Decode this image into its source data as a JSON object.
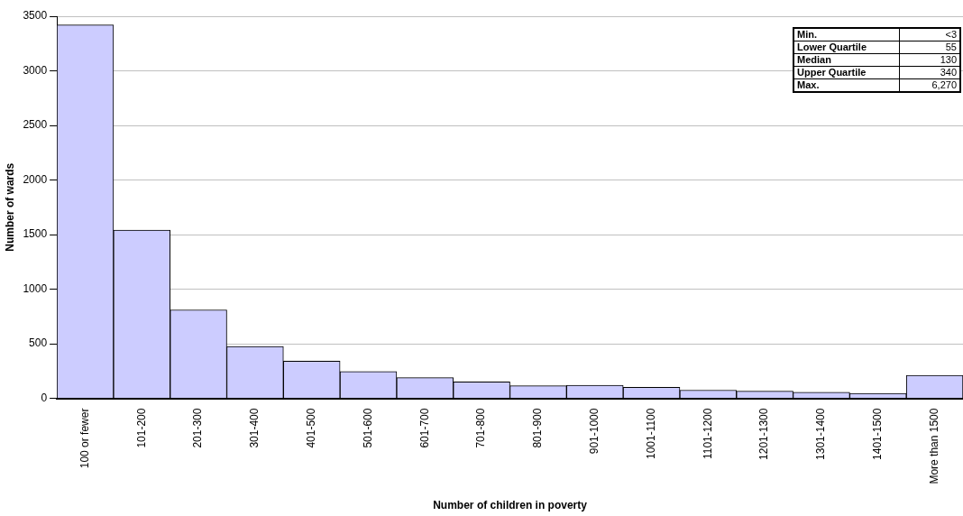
{
  "chart_data": {
    "type": "bar",
    "xlabel": "Number of children in poverty",
    "ylabel": "Number of wards",
    "categories": [
      "100 or fewer",
      "101-200",
      "201-300",
      "301-400",
      "401-500",
      "501-600",
      "601-700",
      "701-800",
      "801-900",
      "901-1000",
      "1001-1100",
      "1101-1200",
      "1201-1300",
      "1301-1400",
      "1401-1500",
      "More than 1500"
    ],
    "values": [
      3420,
      1540,
      810,
      475,
      340,
      245,
      190,
      150,
      115,
      120,
      100,
      75,
      65,
      55,
      45,
      210
    ],
    "color": "#ccccff",
    "ylim": [
      0,
      3500
    ],
    "yticks": [
      0,
      500,
      1000,
      1500,
      2000,
      2500,
      3000,
      3500
    ],
    "grid": "y",
    "legend": false,
    "annotations": [
      "Min.",
      "<3",
      "Lower Quartile",
      "55",
      "Median",
      "130",
      "Upper Quartile",
      "340",
      "Max.",
      "6,270"
    ]
  }
}
